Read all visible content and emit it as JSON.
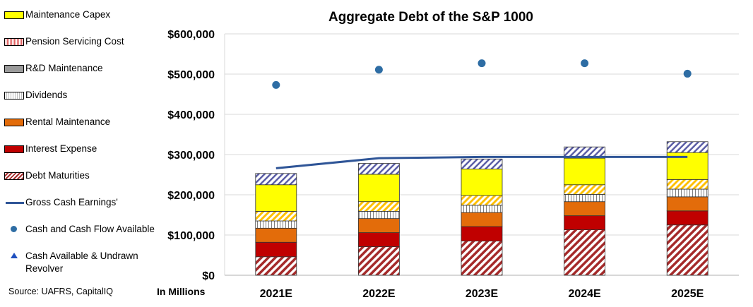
{
  "legend": [
    {
      "label": "Maintenance Capex",
      "kind": "swatch",
      "fill": "yellow"
    },
    {
      "label": "Pension Servicing Cost",
      "kind": "swatch",
      "fill": "pension"
    },
    {
      "label": "R&D Maintenance",
      "kind": "swatch",
      "fill": "rd"
    },
    {
      "label": "Dividends",
      "kind": "swatch",
      "fill": "dividends"
    },
    {
      "label": "Rental Maintenance",
      "kind": "swatch",
      "fill": "orange"
    },
    {
      "label": "Interest Expense",
      "kind": "swatch",
      "fill": "red"
    },
    {
      "label": "Debt Maturities",
      "kind": "swatch",
      "fill": "hatch"
    },
    {
      "label": "Gross Cash Earnings'",
      "kind": "line"
    },
    {
      "label": "Cash and Cash Flow Available",
      "kind": "dot"
    },
    {
      "label": "Cash Available & Undrawn Revolver",
      "kind": "triangle"
    }
  ],
  "source": "Source: UAFRS, CapitalIQ",
  "units_note": "In Millions",
  "colors": {
    "maintenance_capex": "#ffff00",
    "interest_expense": "#c00000",
    "rental_maintenance": "#e36c0a",
    "debt_maturities": "#a52a2a",
    "line": "#2f5597",
    "dots": "#2e6da4",
    "top_hatch": "#5b5ea6"
  },
  "chart_data": {
    "type": "bar",
    "title": "Aggregate Debt of the S&P 1000",
    "categories": [
      "2021E",
      "2022E",
      "2023E",
      "2024E",
      "2025E"
    ],
    "ylim": [
      0,
      600000
    ],
    "yticks": [
      0,
      100000,
      200000,
      300000,
      400000,
      500000,
      600000
    ],
    "ytick_labels": [
      "$0",
      "$100,000",
      "$200,000",
      "$300,000",
      "$400,000",
      "$500,000",
      "$600,000"
    ],
    "grid": true,
    "stacked_series": [
      {
        "name": "Debt Maturities",
        "values": [
          46000,
          71000,
          85000,
          113000,
          125000
        ]
      },
      {
        "name": "Interest Expense",
        "values": [
          36000,
          35000,
          36000,
          35000,
          35000
        ]
      },
      {
        "name": "Rental Maintenance",
        "values": [
          35000,
          35000,
          35000,
          35000,
          35000
        ]
      },
      {
        "name": "Dividends",
        "values": [
          18000,
          18000,
          18000,
          18000,
          19000
        ]
      },
      {
        "name": "Pension Servicing Cost",
        "values": [
          24000,
          24000,
          24000,
          24000,
          24000
        ]
      },
      {
        "name": "Maintenance Capex",
        "values": [
          66000,
          68000,
          66000,
          66000,
          67000
        ]
      },
      {
        "name": "R&D Maintenance",
        "values": [
          28000,
          27000,
          25000,
          28000,
          27000
        ]
      }
    ],
    "line_series": {
      "name": "Gross Cash Earnings'",
      "x": [
        "2021E",
        "2022E",
        "2023E",
        "2024E",
        "2025E"
      ],
      "values": [
        266000,
        291000,
        294000,
        294000,
        294000
      ]
    },
    "scatter_series": {
      "name": "Cash and Cash Flow Available",
      "x": [
        "2021E",
        "2022E",
        "2023E",
        "2024E",
        "2025E"
      ],
      "values": [
        473000,
        511000,
        527000,
        527000,
        501000
      ]
    }
  }
}
